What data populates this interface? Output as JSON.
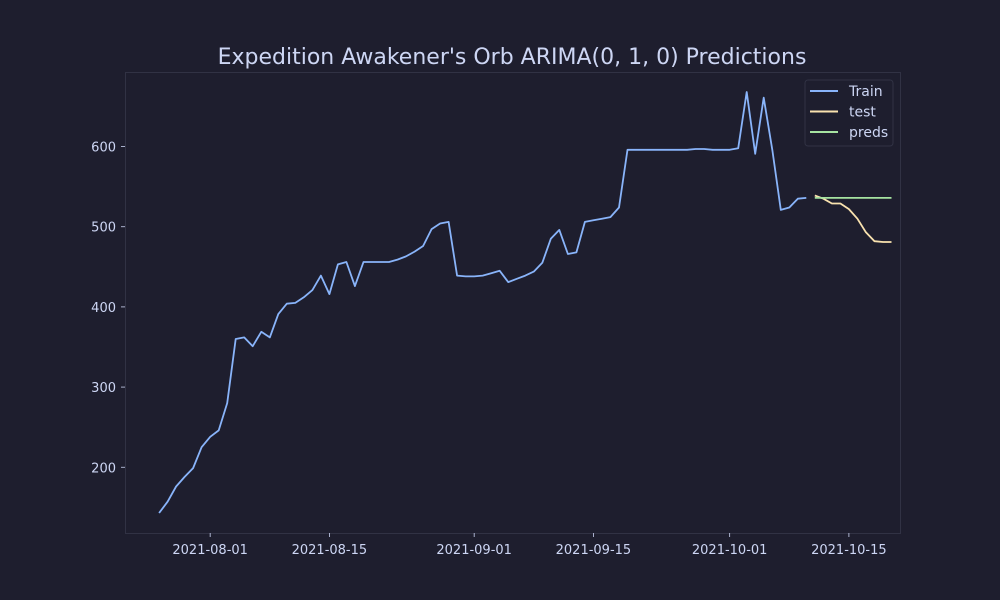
{
  "chart_data": {
    "type": "line",
    "title": "Expedition Awakener's Orb ARIMA(0, 1, 0) Predictions",
    "xlabel": "",
    "ylabel": "",
    "x_ticks": [
      "2021-08-01",
      "2021-08-15",
      "2021-09-01",
      "2021-09-15",
      "2021-10-01",
      "2021-10-15"
    ],
    "y_ticks": [
      200,
      300,
      400,
      500,
      600
    ],
    "ylim": [
      118,
      693
    ],
    "xlim": [
      "2021-07-22",
      "2021-10-21"
    ],
    "grid": false,
    "legend_position": "top-right",
    "colors": {
      "background": "#1e1e2e",
      "axis": "#313244",
      "text": "#cdd6f4",
      "Train": "#89b4fa",
      "test": "#f9e2af",
      "preds": "#a6e3a1"
    },
    "series": [
      {
        "name": "Train",
        "points": [
          [
            "2021-07-26",
            143
          ],
          [
            "2021-07-27",
            157
          ],
          [
            "2021-07-28",
            176
          ],
          [
            "2021-07-29",
            188
          ],
          [
            "2021-07-30",
            199
          ],
          [
            "2021-07-31",
            225
          ],
          [
            "2021-08-01",
            238
          ],
          [
            "2021-08-02",
            246
          ],
          [
            "2021-08-03",
            280
          ],
          [
            "2021-08-04",
            360
          ],
          [
            "2021-08-05",
            362
          ],
          [
            "2021-08-06",
            351
          ],
          [
            "2021-08-07",
            369
          ],
          [
            "2021-08-08",
            362
          ],
          [
            "2021-08-09",
            391
          ],
          [
            "2021-08-10",
            404
          ],
          [
            "2021-08-11",
            405
          ],
          [
            "2021-08-12",
            412
          ],
          [
            "2021-08-13",
            421
          ],
          [
            "2021-08-14",
            439
          ],
          [
            "2021-08-15",
            416
          ],
          [
            "2021-08-16",
            453
          ],
          [
            "2021-08-17",
            456
          ],
          [
            "2021-08-18",
            426
          ],
          [
            "2021-08-19",
            456
          ],
          [
            "2021-08-20",
            456
          ],
          [
            "2021-08-21",
            456
          ],
          [
            "2021-08-22",
            456
          ],
          [
            "2021-08-23",
            459
          ],
          [
            "2021-08-24",
            463
          ],
          [
            "2021-08-25",
            469
          ],
          [
            "2021-08-26",
            476
          ],
          [
            "2021-08-27",
            497
          ],
          [
            "2021-08-28",
            504
          ],
          [
            "2021-08-29",
            506
          ],
          [
            "2021-08-30",
            439
          ],
          [
            "2021-08-31",
            438
          ],
          [
            "2021-09-01",
            438
          ],
          [
            "2021-09-02",
            439
          ],
          [
            "2021-09-03",
            442
          ],
          [
            "2021-09-04",
            445
          ],
          [
            "2021-09-05",
            431
          ],
          [
            "2021-09-06",
            435
          ],
          [
            "2021-09-07",
            439
          ],
          [
            "2021-09-08",
            444
          ],
          [
            "2021-09-09",
            455
          ],
          [
            "2021-09-10",
            485
          ],
          [
            "2021-09-11",
            496
          ],
          [
            "2021-09-12",
            466
          ],
          [
            "2021-09-13",
            468
          ],
          [
            "2021-09-14",
            506
          ],
          [
            "2021-09-15",
            508
          ],
          [
            "2021-09-16",
            510
          ],
          [
            "2021-09-17",
            512
          ],
          [
            "2021-09-18",
            524
          ],
          [
            "2021-09-19",
            596
          ],
          [
            "2021-09-20",
            596
          ],
          [
            "2021-09-21",
            596
          ],
          [
            "2021-09-22",
            596
          ],
          [
            "2021-09-23",
            596
          ],
          [
            "2021-09-24",
            596
          ],
          [
            "2021-09-25",
            596
          ],
          [
            "2021-09-26",
            596
          ],
          [
            "2021-09-27",
            597
          ],
          [
            "2021-09-28",
            597
          ],
          [
            "2021-09-29",
            596
          ],
          [
            "2021-09-30",
            596
          ],
          [
            "2021-10-01",
            596
          ],
          [
            "2021-10-02",
            598
          ],
          [
            "2021-10-03",
            668
          ],
          [
            "2021-10-04",
            591
          ],
          [
            "2021-10-05",
            661
          ],
          [
            "2021-10-06",
            596
          ],
          [
            "2021-10-07",
            521
          ],
          [
            "2021-10-08",
            524
          ],
          [
            "2021-10-09",
            535
          ],
          [
            "2021-10-10",
            536
          ]
        ]
      },
      {
        "name": "test",
        "points": [
          [
            "2021-10-11",
            539
          ],
          [
            "2021-10-12",
            535
          ],
          [
            "2021-10-13",
            529
          ],
          [
            "2021-10-14",
            529
          ],
          [
            "2021-10-15",
            522
          ],
          [
            "2021-10-16",
            510
          ],
          [
            "2021-10-17",
            493
          ],
          [
            "2021-10-18",
            482
          ],
          [
            "2021-10-19",
            481
          ],
          [
            "2021-10-20",
            481
          ]
        ]
      },
      {
        "name": "preds",
        "points": [
          [
            "2021-10-11",
            536
          ],
          [
            "2021-10-12",
            536
          ],
          [
            "2021-10-13",
            536
          ],
          [
            "2021-10-14",
            536
          ],
          [
            "2021-10-15",
            536
          ],
          [
            "2021-10-16",
            536
          ],
          [
            "2021-10-17",
            536
          ],
          [
            "2021-10-18",
            536
          ],
          [
            "2021-10-19",
            536
          ],
          [
            "2021-10-20",
            536
          ]
        ]
      }
    ]
  }
}
